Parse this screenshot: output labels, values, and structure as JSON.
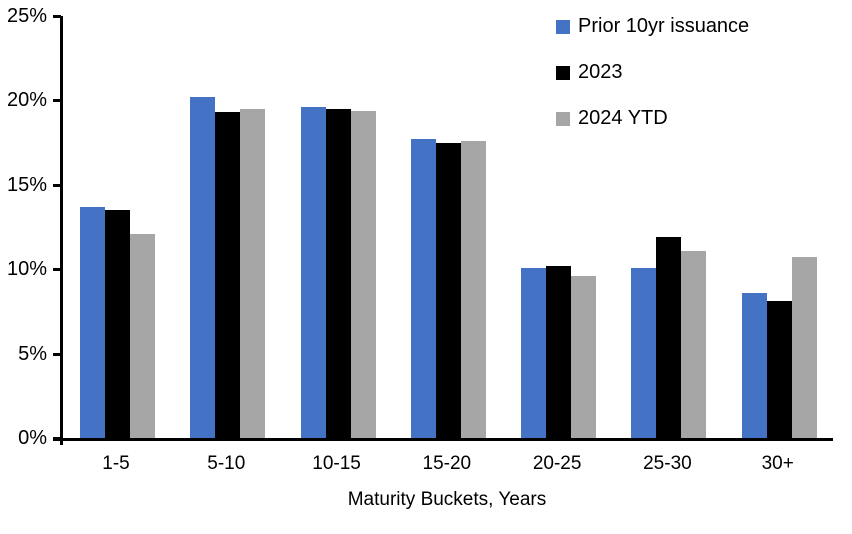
{
  "chart_data": {
    "type": "bar",
    "title": "",
    "xlabel": "Maturity Buckets, Years",
    "ylabel": "",
    "ylim": [
      0,
      25
    ],
    "grid": false,
    "legend_position": "top-right",
    "axis_color": "#000000",
    "y_ticks": [
      {
        "value": 0,
        "label": "0%"
      },
      {
        "value": 5,
        "label": "5%"
      },
      {
        "value": 10,
        "label": "10%"
      },
      {
        "value": 15,
        "label": "15%"
      },
      {
        "value": 20,
        "label": "20%"
      },
      {
        "value": 25,
        "label": "25%"
      }
    ],
    "categories": [
      "1-5",
      "5-10",
      "10-15",
      "15-20",
      "20-25",
      "25-30",
      "30+"
    ],
    "series": [
      {
        "name": "Prior 10yr issuance",
        "color": "#4472C4",
        "values": [
          13.7,
          20.2,
          19.6,
          17.7,
          10.1,
          10.1,
          8.6
        ]
      },
      {
        "name": "2023",
        "color": "#000000",
        "values": [
          13.5,
          19.3,
          19.5,
          17.5,
          10.2,
          11.9,
          8.1
        ]
      },
      {
        "name": "2024 YTD",
        "color": "#A6A6A6",
        "values": [
          12.1,
          19.5,
          19.4,
          17.6,
          9.6,
          11.1,
          10.7
        ]
      }
    ]
  }
}
